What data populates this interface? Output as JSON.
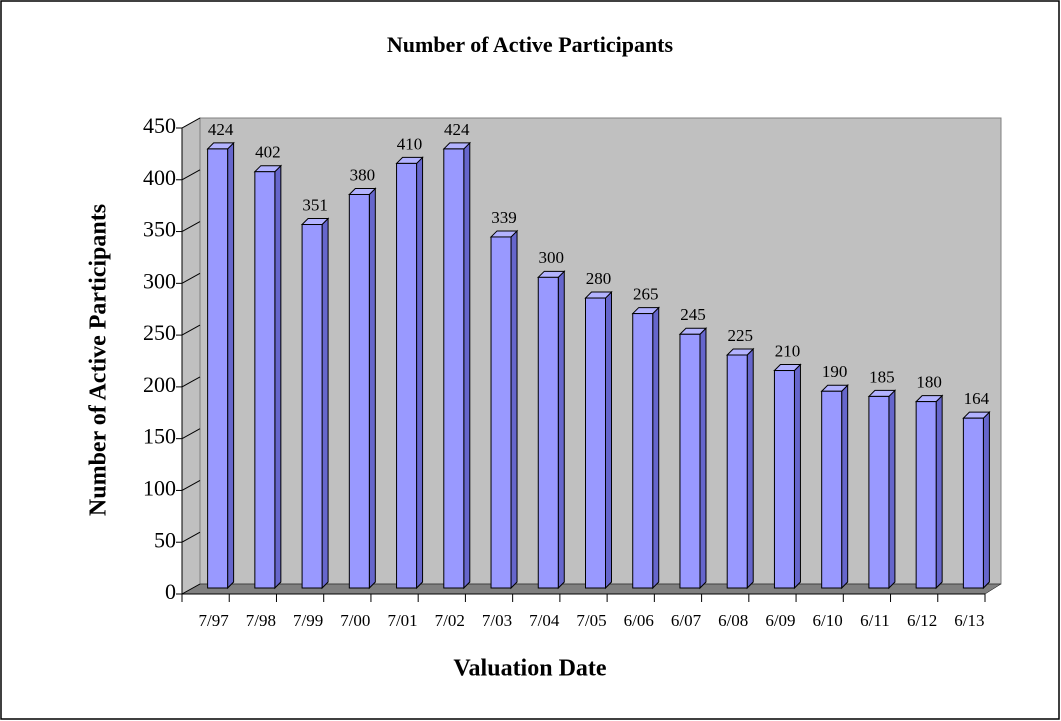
{
  "chart_data": {
    "type": "bar3d",
    "title": "Number of Active Participants",
    "x_label": "Valuation Date",
    "y_label": "Number of Active Participants",
    "categories": [
      "7/97",
      "7/98",
      "7/99",
      "7/00",
      "7/01",
      "7/02",
      "7/03",
      "7/04",
      "7/05",
      "6/06",
      "6/07",
      "6/08",
      "6/09",
      "6/10",
      "6/11",
      "6/12",
      "6/13"
    ],
    "values": [
      424,
      402,
      351,
      380,
      410,
      424,
      339,
      300,
      280,
      265,
      245,
      225,
      210,
      190,
      185,
      180,
      164
    ],
    "color": "#9999ff",
    "ylim": [
      0,
      450
    ],
    "yticks": [
      0,
      50,
      100,
      150,
      200,
      250,
      300,
      350,
      400,
      450
    ]
  }
}
